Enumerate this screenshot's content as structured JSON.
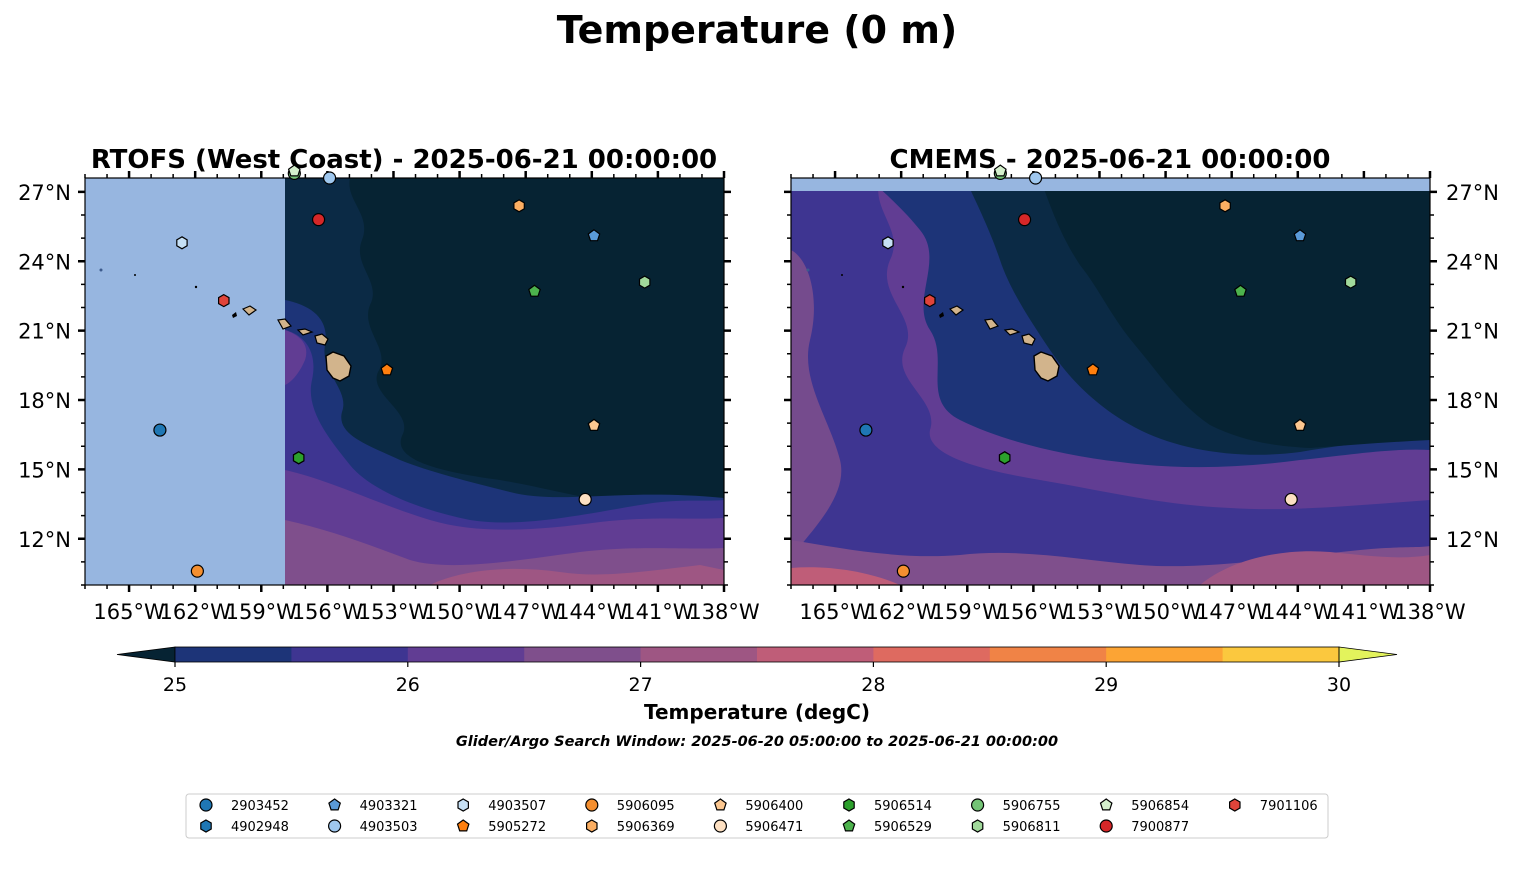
{
  "figure": {
    "title": "Temperature (0 m)",
    "colorbar_label": "Temperature (degC)",
    "search_window": "Glider/Argo Search Window: 2025-06-20 05:00:00 to 2025-06-21 00:00:00"
  },
  "chart_data": {
    "type": "heatmap",
    "title": "Temperature (0 m)",
    "panels": [
      {
        "title": "RTOFS (West Coast) - 2025-06-21 00:00:00",
        "model_coverage_lon": [
          -157.5,
          -138
        ]
      },
      {
        "title": "CMEMS - 2025-06-21 00:00:00",
        "model_coverage_lon": [
          -167,
          -138
        ]
      }
    ],
    "map_extent": {
      "lon": [
        -167,
        -138
      ],
      "lat": [
        10,
        27.6
      ]
    },
    "x_ticks": [
      {
        "value": -165,
        "label": "165°W"
      },
      {
        "value": -162,
        "label": "162°W"
      },
      {
        "value": -159,
        "label": "159°W"
      },
      {
        "value": -156,
        "label": "156°W"
      },
      {
        "value": -153,
        "label": "153°W"
      },
      {
        "value": -150,
        "label": "150°W"
      },
      {
        "value": -147,
        "label": "147°W"
      },
      {
        "value": -144,
        "label": "144°W"
      },
      {
        "value": -141,
        "label": "141°W"
      },
      {
        "value": -138,
        "label": "138°W"
      }
    ],
    "y_ticks": [
      {
        "value": 27,
        "label": "27°N"
      },
      {
        "value": 24,
        "label": "24°N"
      },
      {
        "value": 21,
        "label": "21°N"
      },
      {
        "value": 18,
        "label": "18°N"
      },
      {
        "value": 15,
        "label": "15°N"
      },
      {
        "value": 12,
        "label": "12°N"
      }
    ],
    "colorbar": {
      "label": "Temperature (degC)",
      "min": 25,
      "max": 30,
      "step": 0.5,
      "ticks": [
        "25",
        "26",
        "27",
        "28",
        "29",
        "30"
      ],
      "colors": [
        "#062333",
        "#1d3478",
        "#3e3591",
        "#613d93",
        "#7f4f8c",
        "#9e5683",
        "#bf5d78",
        "#de6a60",
        "#f08346",
        "#fca434",
        "#fbc83e",
        "#e3f35c"
      ],
      "extend": "both"
    },
    "colors": {
      "ocean_no_data": "#97b6e0",
      "land": "#d2b48c"
    },
    "stations": [
      {
        "id": "2903452",
        "marker": "circle",
        "color": "#1f77b4",
        "lon": -163.6,
        "lat": 16.7
      },
      {
        "id": "4902948",
        "marker": "hexagon",
        "color": "#1f77b4",
        "lon": -157.3,
        "lat": 15.5
      },
      {
        "id": "4903321",
        "marker": "pentagon",
        "color": "#5a9ad8",
        "lon": -143.9,
        "lat": 25.1
      },
      {
        "id": "4903503",
        "marker": "circle",
        "color": "#9fc7ee",
        "lon": -155.9,
        "lat": 27.6
      },
      {
        "id": "4903507",
        "marker": "hexagon",
        "color": "#c6e0f5",
        "lon": -162.6,
        "lat": 24.8
      },
      {
        "id": "5905272",
        "marker": "pentagon",
        "color": "#ff7f0e",
        "lon": -153.3,
        "lat": 19.3
      },
      {
        "id": "5906095",
        "marker": "circle",
        "color": "#f58f2f",
        "lon": -161.9,
        "lat": 10.6
      },
      {
        "id": "5906369",
        "marker": "hexagon",
        "color": "#fbae62",
        "lon": -147.3,
        "lat": 26.4
      },
      {
        "id": "5906400",
        "marker": "pentagon",
        "color": "#fcc790",
        "lon": -143.9,
        "lat": 16.9
      },
      {
        "id": "5906471",
        "marker": "circle",
        "color": "#fde0c2",
        "lon": -144.3,
        "lat": 13.7
      },
      {
        "id": "5906514",
        "marker": "hexagon",
        "color": "#2ca02c",
        "lon": -157.3,
        "lat": 15.5
      },
      {
        "id": "5906529",
        "marker": "pentagon",
        "color": "#4db34d",
        "lon": -146.6,
        "lat": 22.7
      },
      {
        "id": "5906755",
        "marker": "circle",
        "color": "#74c476",
        "lon": -157.5,
        "lat": 27.8
      },
      {
        "id": "5906811",
        "marker": "hexagon",
        "color": "#a1d99b",
        "lon": -141.6,
        "lat": 23.1
      },
      {
        "id": "5906854",
        "marker": "pentagon",
        "color": "#d4f0cc",
        "lon": -157.5,
        "lat": 27.9
      },
      {
        "id": "7900877",
        "marker": "circle",
        "color": "#d62728",
        "lon": -156.4,
        "lat": 25.8
      },
      {
        "id": "7901106",
        "marker": "hexagon",
        "color": "#e0443a",
        "lon": -160.7,
        "lat": 22.3
      }
    ]
  }
}
